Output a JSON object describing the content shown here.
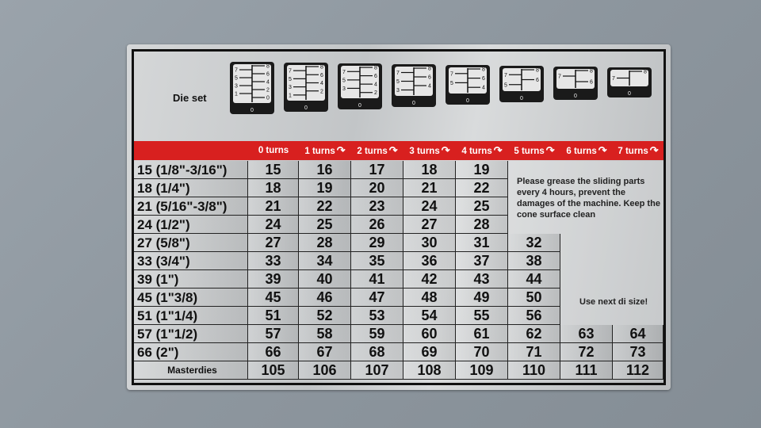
{
  "die_set": {
    "label": "Die set",
    "scale_left": [
      "1",
      "3",
      "5",
      "7"
    ],
    "scale_right": [
      "0",
      "2",
      "4",
      "6",
      "8"
    ],
    "bottom_label": "0",
    "levels": [
      0,
      1,
      2,
      3,
      4,
      5,
      6,
      7
    ]
  },
  "header": {
    "columns": [
      "0 turns",
      "1 turns",
      "2 turns",
      "3 turns",
      "4 turns",
      "5 turns",
      "6 turns",
      "7 turns"
    ],
    "arrow_icon": "clockwise-arrow-icon",
    "color": "#d8201f"
  },
  "rows": [
    {
      "label": "15 (1/8\"-3/16\")",
      "values": [
        "15",
        "16",
        "17",
        "18",
        "19"
      ]
    },
    {
      "label": "18 (1/4\")",
      "values": [
        "18",
        "19",
        "20",
        "21",
        "22"
      ]
    },
    {
      "label": "21 (5/16\"-3/8\")",
      "values": [
        "21",
        "22",
        "23",
        "24",
        "25"
      ]
    },
    {
      "label": "24 (1/2\")",
      "values": [
        "24",
        "25",
        "26",
        "27",
        "28"
      ]
    },
    {
      "label": "27 (5/8\")",
      "values": [
        "27",
        "28",
        "29",
        "30",
        "31",
        "32"
      ]
    },
    {
      "label": "33 (3/4\")",
      "values": [
        "33",
        "34",
        "35",
        "36",
        "37",
        "38"
      ]
    },
    {
      "label": "39 (1\")",
      "values": [
        "39",
        "40",
        "41",
        "42",
        "43",
        "44"
      ]
    },
    {
      "label": "45 (1\"3/8)",
      "values": [
        "45",
        "46",
        "47",
        "48",
        "49",
        "50"
      ]
    },
    {
      "label": "51 (1\"1/4)",
      "values": [
        "51",
        "52",
        "53",
        "54",
        "55",
        "56"
      ]
    },
    {
      "label": "57 (1\"1/2)",
      "values": [
        "57",
        "58",
        "59",
        "60",
        "61",
        "62",
        "63",
        "64"
      ]
    },
    {
      "label": "66 (2\")",
      "values": [
        "66",
        "67",
        "68",
        "69",
        "70",
        "71",
        "72",
        "73"
      ]
    },
    {
      "label": "Masterdies",
      "values": [
        "105",
        "106",
        "107",
        "108",
        "109",
        "110",
        "111",
        "112"
      ]
    }
  ],
  "notes": {
    "grease": "Please grease the sliding parts every 4 hours, prevent the damages of the machine. Keep the cone surface clean",
    "next_size": "Use next di size!"
  }
}
